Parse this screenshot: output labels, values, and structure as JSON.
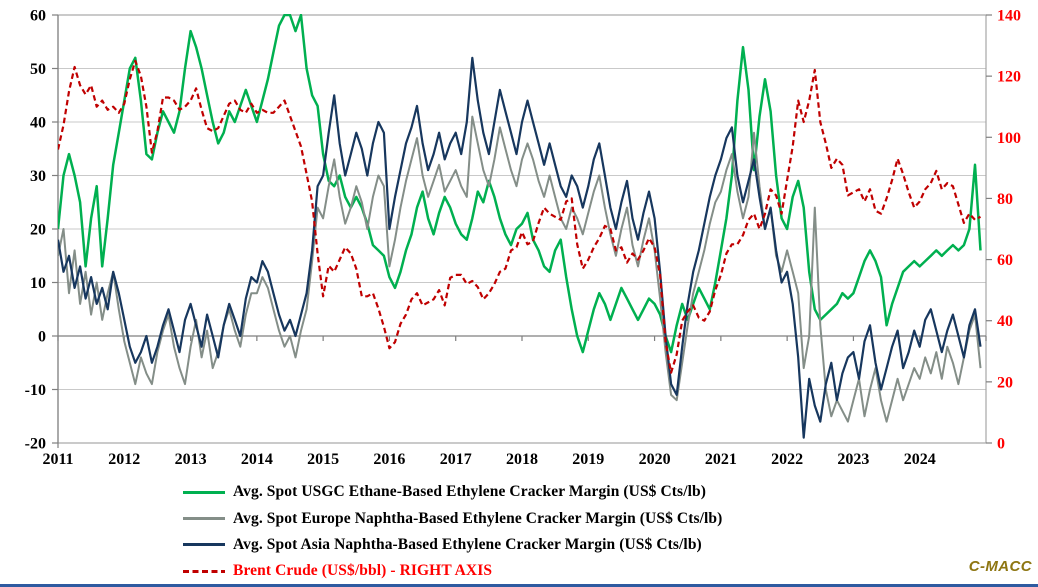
{
  "branding": {
    "label": "C-MACC",
    "color": "#8E7612"
  },
  "left_axis": {
    "labels": [
      "60",
      "50",
      "40",
      "30",
      "20",
      "10",
      "0",
      "-10",
      "-20"
    ],
    "min": -20,
    "max": 60,
    "color": "#000000"
  },
  "right_axis": {
    "labels": [
      "140",
      "120",
      "100",
      "80",
      "60",
      "40",
      "20",
      "0"
    ],
    "min": 0,
    "max": 140,
    "color": "#FF0000"
  },
  "x_axis": {
    "years": [
      "2011",
      "2012",
      "2013",
      "2014",
      "2015",
      "2016",
      "2017",
      "2018",
      "2019",
      "2020",
      "2021",
      "2022",
      "2023",
      "2024"
    ]
  },
  "legend": {
    "items": [
      {
        "label": "Avg. Spot USGC Ethane-Based Ethylene Cracker Margin (US$ Cts/lb)",
        "color": "#00B050",
        "style": "solid",
        "text_color": "#000000"
      },
      {
        "label": "Avg. Spot Europe Naphtha-Based Ethylene Cracker Margin (US$ Cts/lb)",
        "color": "#848E88",
        "style": "solid",
        "text_color": "#000000"
      },
      {
        "label": "Avg. Spot Asia Naphtha-Based Ethylene Cracker Margin (US$ Cts/lb)",
        "color": "#17375E",
        "style": "solid",
        "text_color": "#000000"
      },
      {
        "label": "Brent Crude (US$/bbl) - RIGHT AXIS",
        "color": "#C00000",
        "style": "dashed",
        "text_color": "#FF0000"
      }
    ]
  },
  "chart_data": {
    "type": "line",
    "x_start_year": 2011,
    "x_points_per_year": 12,
    "left_ylim": [
      -20,
      60
    ],
    "right_ylim": [
      0,
      140
    ],
    "grid": "horizontal-every-10-left-units",
    "legend_position": "bottom",
    "colors": {
      "grid": "#C9C9C9",
      "border": "#A6A6A6",
      "zero_axis": "#7F7F7F",
      "left_labels": "#000000",
      "right_labels": "#FF0000"
    },
    "series": [
      {
        "key": "usgc_ethane",
        "name": "Avg. Spot USGC Ethane-Based Ethylene Cracker Margin (US$ Cts/lb)",
        "axis": "left",
        "color": "#00B050",
        "style": "solid",
        "width": 2.5,
        "values": [
          20,
          30,
          34,
          30,
          25,
          13,
          22,
          28,
          13,
          22,
          32,
          38,
          44,
          50,
          52,
          44,
          34,
          33,
          38,
          42,
          40,
          38,
          42,
          50,
          57,
          54,
          50,
          45,
          40,
          36,
          38,
          42,
          40,
          43,
          46,
          43,
          40,
          44,
          48,
          53,
          58,
          60,
          60,
          57,
          60,
          50,
          45,
          43,
          34,
          29,
          28,
          30,
          26,
          24,
          26,
          24,
          21,
          17,
          16,
          15,
          11,
          9,
          12,
          16,
          19,
          24,
          27,
          22,
          19,
          23,
          26,
          24,
          21,
          19,
          18,
          22,
          27,
          25,
          29,
          26,
          22,
          19,
          17,
          20,
          21,
          23,
          18,
          16,
          13,
          12,
          16,
          18,
          11,
          5,
          0,
          -3,
          1,
          5,
          8,
          6,
          3,
          6,
          9,
          7,
          5,
          3,
          5,
          7,
          6,
          4,
          0,
          -3,
          2,
          6,
          3,
          6,
          9,
          7,
          5,
          10,
          16,
          22,
          30,
          44,
          54,
          46,
          31,
          41,
          48,
          42,
          30,
          22,
          20,
          26,
          29,
          24,
          12,
          5,
          3,
          4,
          5,
          6,
          8,
          7,
          8,
          11,
          14,
          16,
          14,
          11,
          2,
          6,
          9,
          12,
          13,
          14,
          13,
          14,
          15,
          16,
          15,
          16,
          17,
          16,
          17,
          20,
          32,
          16
        ]
      },
      {
        "key": "europe_naphtha",
        "name": "Avg. Spot Europe Naphtha-Based Ethylene Cracker Margin (US$ Cts/lb)",
        "axis": "left",
        "color": "#848E88",
        "style": "solid",
        "width": 2,
        "values": [
          15,
          20,
          8,
          16,
          6,
          12,
          4,
          10,
          3,
          8,
          12,
          5,
          -1,
          -5,
          -9,
          -4,
          -7,
          -9,
          -3,
          1,
          4,
          -2,
          -6,
          -9,
          -2,
          3,
          -4,
          1,
          -6,
          -3,
          2,
          5,
          1,
          -2,
          4,
          8,
          8,
          11,
          9,
          5,
          1,
          -2,
          0,
          -4,
          1,
          5,
          14,
          24,
          22,
          28,
          33,
          26,
          21,
          24,
          28,
          25,
          20,
          26,
          30,
          28,
          13,
          18,
          24,
          29,
          33,
          37,
          30,
          26,
          29,
          32,
          27,
          29,
          31,
          28,
          26,
          41,
          36,
          31,
          28,
          33,
          39,
          35,
          31,
          28,
          33,
          36,
          33,
          29,
          26,
          30,
          26,
          22,
          20,
          24,
          22,
          19,
          23,
          27,
          30,
          24,
          19,
          15,
          20,
          24,
          17,
          13,
          18,
          22,
          16,
          7,
          -3,
          -11,
          -12,
          -5,
          2,
          8,
          12,
          16,
          21,
          25,
          27,
          31,
          34,
          27,
          22,
          26,
          38,
          28,
          20,
          24,
          15,
          12,
          16,
          12,
          8,
          -6,
          0,
          24,
          2,
          -10,
          -15,
          -12,
          -14,
          -16,
          -12,
          -8,
          -15,
          -10,
          -6,
          -12,
          -16,
          -12,
          -8,
          -12,
          -9,
          -6,
          -8,
          -4,
          -7,
          -3,
          -8,
          -2,
          -5,
          -9,
          -4,
          1,
          4,
          -6
        ]
      },
      {
        "key": "asia_naphtha",
        "name": "Avg. Spot Asia Naphtha-Based Ethylene Cracker Margin (US$ Cts/lb)",
        "axis": "left",
        "color": "#17375E",
        "style": "solid",
        "width": 2.2,
        "values": [
          18,
          12,
          15,
          9,
          13,
          7,
          11,
          6,
          9,
          5,
          12,
          8,
          3,
          -2,
          -5,
          -3,
          0,
          -5,
          -2,
          2,
          5,
          1,
          -3,
          3,
          6,
          2,
          -2,
          4,
          0,
          -4,
          2,
          6,
          3,
          0,
          7,
          11,
          10,
          14,
          12,
          8,
          4,
          1,
          3,
          0,
          4,
          8,
          16,
          28,
          30,
          38,
          45,
          36,
          30,
          34,
          38,
          35,
          30,
          36,
          40,
          38,
          20,
          26,
          31,
          36,
          39,
          43,
          36,
          31,
          34,
          38,
          33,
          36,
          38,
          34,
          40,
          52,
          44,
          38,
          34,
          40,
          46,
          42,
          38,
          34,
          40,
          44,
          40,
          36,
          32,
          36,
          32,
          28,
          26,
          30,
          28,
          24,
          28,
          33,
          36,
          30,
          24,
          20,
          25,
          29,
          22,
          18,
          23,
          27,
          22,
          12,
          0,
          -9,
          -11,
          -2,
          6,
          12,
          16,
          21,
          26,
          30,
          33,
          37,
          39,
          30,
          25,
          29,
          33,
          26,
          20,
          24,
          16,
          10,
          12,
          6,
          -4,
          -19,
          -8,
          -13,
          -16,
          -9,
          -5,
          -12,
          -7,
          -4,
          -3,
          -8,
          -1,
          2,
          -5,
          -10,
          -6,
          -2,
          1,
          -6,
          -3,
          1,
          -2,
          3,
          5,
          1,
          -3,
          1,
          4,
          0,
          -4,
          2,
          5,
          -2
        ]
      },
      {
        "key": "brent",
        "name": "Brent Crude (US$/bbl) - RIGHT AXIS",
        "axis": "right",
        "color": "#C00000",
        "style": "dashed",
        "width": 2.2,
        "values": [
          96,
          104,
          115,
          123,
          117,
          114,
          117,
          110,
          112,
          109,
          110,
          108,
          111,
          119,
          125,
          120,
          110,
          95,
          102,
          113,
          113,
          112,
          109,
          110,
          112,
          116,
          109,
          103,
          102,
          103,
          107,
          111,
          112,
          109,
          108,
          111,
          108,
          109,
          108,
          108,
          110,
          112,
          107,
          102,
          97,
          88,
          79,
          62,
          48,
          58,
          56,
          60,
          64,
          62,
          57,
          48,
          48,
          49,
          44,
          38,
          31,
          33,
          39,
          42,
          47,
          49,
          45,
          46,
          47,
          50,
          45,
          54,
          55,
          55,
          52,
          53,
          51,
          47,
          49,
          52,
          56,
          57,
          63,
          64,
          69,
          65,
          66,
          72,
          77,
          75,
          74,
          73,
          79,
          80,
          65,
          57,
          60,
          64,
          67,
          71,
          70,
          63,
          64,
          59,
          62,
          60,
          63,
          67,
          64,
          55,
          33,
          23,
          29,
          40,
          43,
          45,
          41,
          40,
          43,
          50,
          55,
          62,
          65,
          65,
          68,
          73,
          75,
          70,
          75,
          83,
          81,
          75,
          86,
          97,
          112,
          105,
          112,
          122,
          105,
          98,
          90,
          93,
          91,
          81,
          82,
          83,
          79,
          83,
          76,
          75,
          80,
          86,
          93,
          88,
          82,
          77,
          79,
          83,
          85,
          89,
          83,
          85,
          84,
          78,
          72,
          75,
          73,
          74
        ]
      }
    ]
  }
}
